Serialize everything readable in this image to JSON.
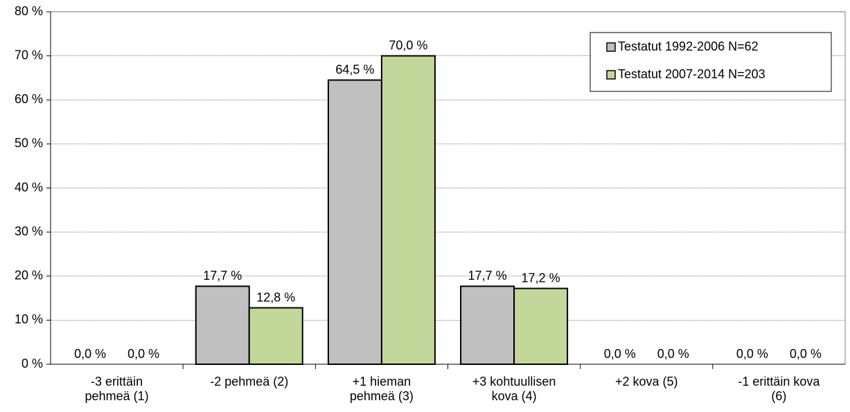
{
  "chart_data": {
    "type": "bar",
    "categories": [
      "-3 erittäin\npehmeä (1)",
      "-2 pehmeä (2)",
      "+1 hieman\npehmeä (3)",
      "+3 kohtuullisen\nkova (4)",
      "+2 kova (5)",
      "-1 erittäin kova\n(6)"
    ],
    "series": [
      {
        "name": "Testatut 1992-2006 N=62",
        "color": "#c0c0c0",
        "values": [
          0,
          17.7,
          64.5,
          17.7,
          0,
          0
        ],
        "value_labels": [
          "0,0 %",
          "17,7 %",
          "64,5 %",
          "17,7 %",
          "0,0 %",
          "0,0 %"
        ]
      },
      {
        "name": "Testatut 2007-2014 N=203",
        "color": "#c4d79b",
        "values": [
          0,
          12.8,
          70.0,
          17.2,
          0,
          0
        ],
        "value_labels": [
          "0,0 %",
          "12,8 %",
          "70,0 %",
          "17,2 %",
          "0,0 %",
          "0,0 %"
        ]
      }
    ],
    "ylim": [
      0,
      80
    ],
    "yticks": [
      {
        "value": 0,
        "label": "0 %"
      },
      {
        "value": 10,
        "label": "10 %"
      },
      {
        "value": 20,
        "label": "20 %"
      },
      {
        "value": 30,
        "label": "30 %"
      },
      {
        "value": 40,
        "label": "40 %"
      },
      {
        "value": 50,
        "label": "50 %"
      },
      {
        "value": 60,
        "label": "60 %"
      },
      {
        "value": 70,
        "label": "70 %"
      },
      {
        "value": 80,
        "label": "80 %"
      }
    ],
    "grid": true,
    "legend": "top-right"
  }
}
